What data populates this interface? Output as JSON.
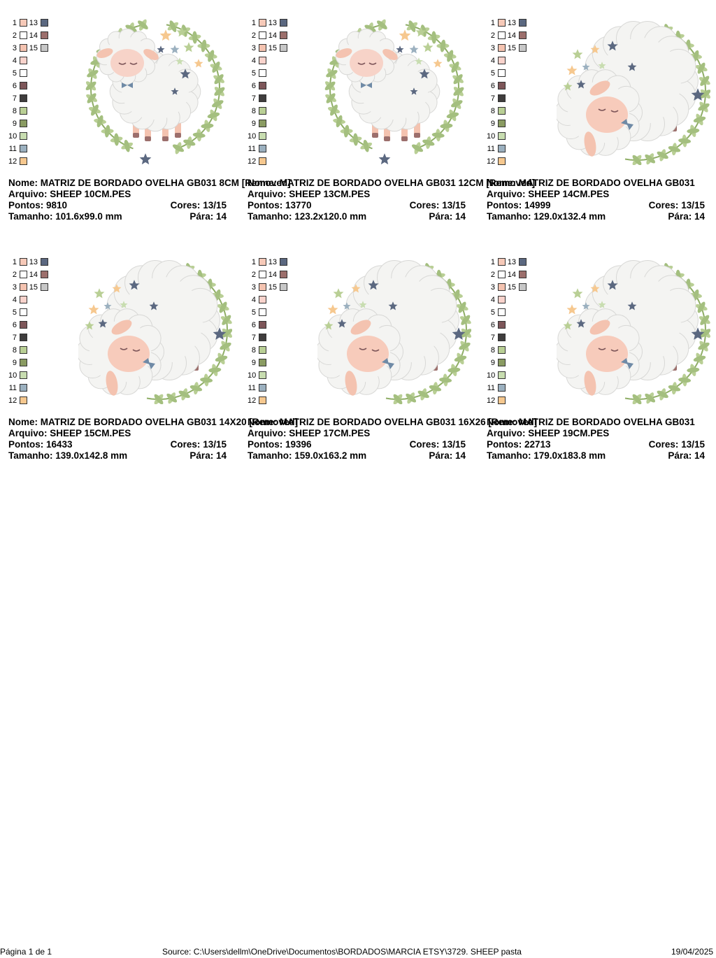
{
  "palette": {
    "numbers": [
      "1",
      "2",
      "3",
      "4",
      "5",
      "6",
      "7",
      "8",
      "9",
      "10",
      "11",
      "12",
      "13",
      "14",
      "15"
    ],
    "colors": [
      "#f6c9b8",
      "#ffffff",
      "#f4c3b0",
      "#f9d3cc",
      "#ffffff",
      "#7d5659",
      "#3f3d3d",
      "#b9cf95",
      "#8a9b62",
      "#c8ddb0",
      "#9bb0bf",
      "#f6c88f",
      "#5b6880",
      "#9c6f6c",
      "#c7c7c7"
    ]
  },
  "labels": {
    "name": "Nome:",
    "file": "Arquivo:",
    "stitches": "Pontos:",
    "colors": "Cores:",
    "size": "Tamanho:",
    "stops": "Pára:"
  },
  "designs": [
    {
      "name": "MATRIZ DE BORDADO OVELHA GB031 8CM [Removed]",
      "file": "SHEEP 10CM.PES",
      "stitches": "9810",
      "colors": "13/15",
      "size": "101.6x99.0 mm",
      "stops": "14",
      "style": "standing"
    },
    {
      "name": "MATRIZ DE BORDADO OVELHA GB031 12CM [Removed]",
      "file": "SHEEP 13CM.PES",
      "stitches": "13770",
      "colors": "13/15",
      "size": "123.2x120.0 mm",
      "stops": "14",
      "style": "standing"
    },
    {
      "name": "MATRIZ DE BORDADO OVELHA GB031",
      "file": "SHEEP 14CM.PES",
      "stitches": "14999",
      "colors": "13/15",
      "size": "129.0x132.4 mm",
      "stops": "14",
      "style": "lying"
    },
    {
      "name": "MATRIZ DE BORDADO OVELHA GB031 14X20 [Removed]",
      "file": "SHEEP 15CM.PES",
      "stitches": "16433",
      "colors": "13/15",
      "size": "139.0x142.8 mm",
      "stops": "14",
      "style": "lying"
    },
    {
      "name": "MATRIZ DE BORDADO OVELHA GB031 16X26 [Removed]",
      "file": "SHEEP 17CM.PES",
      "stitches": "19396",
      "colors": "13/15",
      "size": "159.0x163.2 mm",
      "stops": "14",
      "style": "lying"
    },
    {
      "name": "MATRIZ DE BORDADO OVELHA GB031",
      "file": "SHEEP 19CM.PES",
      "stitches": "22713",
      "colors": "13/15",
      "size": "179.0x183.8 mm",
      "stops": "14",
      "style": "lying"
    }
  ],
  "footer": {
    "page": "Página 1 de 1",
    "source": "Source: C:\\Users\\dellm\\OneDrive\\Documentos\\BORDADOS\\MARCIA ETSY\\3729. SHEEP pasta",
    "date": "19/04/2025"
  }
}
